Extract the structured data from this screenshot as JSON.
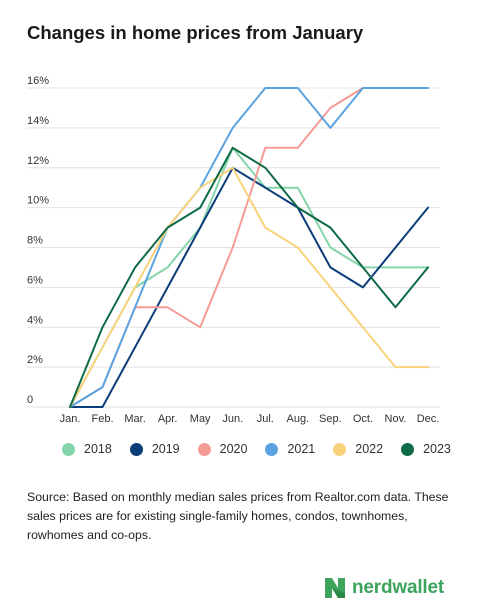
{
  "title": "Changes in home prices from January",
  "source": "Source: Based on monthly median sales prices from Realtor.com data. These sales prices are for existing single-family homes, condos, townhomes, rowhomes and co-ops.",
  "brand": {
    "name": "nerdwallet",
    "color": "#3da35d"
  },
  "chart_data": {
    "type": "line",
    "title": "Changes in home prices from January",
    "xlabel": "",
    "ylabel": "",
    "x": [
      "Jan.",
      "Feb.",
      "Mar.",
      "Apr.",
      "May",
      "Jun.",
      "Jul.",
      "Aug.",
      "Sep.",
      "Oct.",
      "Nov.",
      "Dec."
    ],
    "ylim": [
      0,
      16
    ],
    "yticks": [
      0,
      2,
      4,
      6,
      8,
      10,
      12,
      14,
      16
    ],
    "ytick_labels": [
      "0",
      "2%",
      "4%",
      "6%",
      "8%",
      "10%",
      "12%",
      "14%",
      "16%"
    ],
    "grid": "horizontal",
    "legend_position": "bottom",
    "series": [
      {
        "name": "2018",
        "color": "#86d4a9",
        "values": [
          0,
          3,
          6,
          7,
          9,
          13,
          11,
          11,
          8,
          7,
          7,
          7
        ]
      },
      {
        "name": "2019",
        "color": "#0b3d7a",
        "values": [
          0,
          0,
          3,
          6,
          9,
          12,
          11,
          10,
          7,
          6,
          8,
          10
        ]
      },
      {
        "name": "2020",
        "color": "#f59b96",
        "values": [
          0,
          1,
          5,
          5,
          4,
          8,
          13,
          13,
          15,
          16,
          16,
          16
        ]
      },
      {
        "name": "2021",
        "color": "#5ba3e0",
        "values": [
          0,
          1,
          5,
          9,
          11,
          14,
          16,
          16,
          14,
          16,
          16,
          16
        ]
      },
      {
        "name": "2022",
        "color": "#f9d27b",
        "values": [
          0,
          3,
          6,
          9,
          11,
          12,
          9,
          8,
          6,
          4,
          2,
          2
        ]
      },
      {
        "name": "2023",
        "color": "#0e6b45",
        "values": [
          0,
          4,
          7,
          9,
          10,
          13,
          12,
          10,
          9,
          7,
          5,
          7
        ]
      }
    ]
  }
}
